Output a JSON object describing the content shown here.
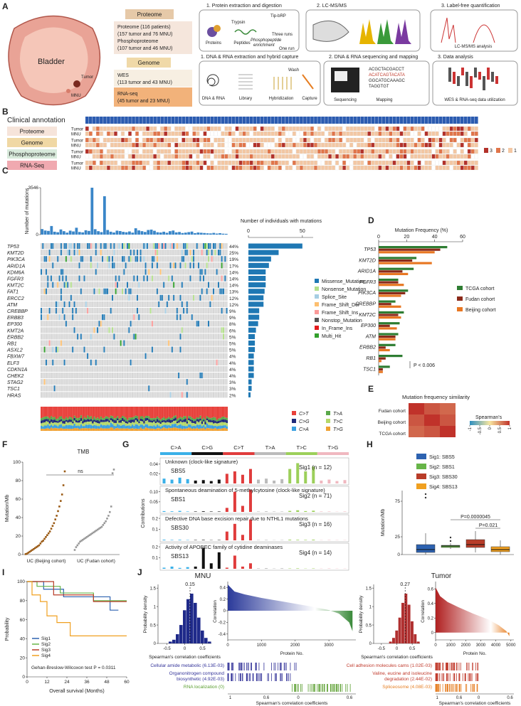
{
  "panel_a": {
    "label": "A",
    "organ": "Bladder",
    "tumor": "Tumor",
    "mnu": "MNU",
    "proteome": {
      "title": "Proteome",
      "lines": [
        "Proteome (116 patients)",
        "(157 tumor and 76 MNU)",
        "Phosphoproteome",
        "(107 tumor and 46 MNU)"
      ]
    },
    "genome": {
      "title": "Genome",
      "wes": [
        "WES",
        "(113 tumor and 43 MNU)"
      ],
      "rnaseq": [
        "RNA-seq",
        "(45 tumor and 23 MNU)"
      ]
    },
    "proteome_flow": {
      "steps": [
        "1. Protein extraction and digestion",
        "2. LC-MS/MS",
        "3. Label-free quantification"
      ],
      "trypsin": "Trypsin",
      "tip": "Tip-bRP",
      "three_runs": "Three runs",
      "proteins": "Proteins",
      "peptides": "Peptides",
      "enrichment": [
        "Phosphopeptide",
        "enrichment"
      ],
      "one_run": "One run",
      "analysis": "LC-MS/MS analysis"
    },
    "genome_flow": {
      "steps": [
        "1. DNA & RNA extraction and hybrid capture",
        "2. DNA & RNA sequencing and mapping",
        "3. Data analysis"
      ],
      "wash": "Wash",
      "dna": "DNA & RNA",
      "library": "Library",
      "hybridization": "Hybridization",
      "capture": "Capture",
      "sequencing": "Sequencing",
      "mapping": "Mapping",
      "reads": [
        "ACGCTACGACCT",
        "ACATCAGTACATA",
        "GGCATGCAAAGC",
        "TAGGTGT"
      ],
      "utilization": "WES & RNA-seq data utilization"
    }
  },
  "panel_b": {
    "label": "B",
    "title": "Clinical annotation",
    "rows": [
      "Proteome",
      "Genome",
      "Phosphoproteome",
      "RNA-Seq"
    ],
    "row_colors": [
      "#f6e4da",
      "#f0d8a4",
      "#d8eadb",
      "#f0a9b0"
    ],
    "subrows": [
      "Tumor",
      "MNU"
    ],
    "legend": [
      {
        "value": 3,
        "color": "#b2312a"
      },
      {
        "value": 2,
        "color": "#e0754a"
      },
      {
        "value": 1,
        "color": "#f3c7a3"
      }
    ]
  },
  "panel_c": {
    "label": "C",
    "count_axis": {
      "label": "Number of mutations",
      "ylim": [
        0,
        3546
      ],
      "yticks": [
        0,
        3546
      ]
    },
    "mutation_counts": [
      420,
      310,
      280,
      650,
      220,
      180,
      390,
      260,
      150,
      300,
      240,
      520,
      200,
      170,
      330,
      280,
      3546,
      410,
      260,
      190,
      2900,
      350,
      220,
      160,
      300,
      270,
      210,
      180,
      240,
      150,
      480,
      320,
      260,
      200,
      350,
      380,
      290,
      180,
      160,
      220,
      140,
      260,
      310,
      170,
      200,
      120,
      150,
      190,
      230,
      110,
      160,
      140,
      120,
      100,
      90,
      130,
      80,
      110,
      70,
      60
    ],
    "genes": [
      "TP53",
      "KMT2D",
      "PIK3CA",
      "ARID1A",
      "KDM6A",
      "FGFR3",
      "KMT2C",
      "FAT1",
      "ERCC2",
      "ATM",
      "CREBBP",
      "ERBB3",
      "EP300",
      "KMT2A",
      "ERBB2",
      "RB1",
      "ASXL2",
      "FBXW7",
      "ELF3",
      "CDKN1A",
      "CHEK2",
      "STAG2",
      "TSC1",
      "HRAS"
    ],
    "freq": [
      44,
      25,
      19,
      17,
      14,
      14,
      14,
      13,
      12,
      12,
      9,
      9,
      8,
      6,
      5,
      5,
      5,
      4,
      4,
      4,
      4,
      3,
      3,
      2
    ],
    "freq_labels": [
      "44%",
      "25%",
      "19%",
      "17%",
      "14%",
      "14%",
      "14%",
      "13%",
      "12%",
      "12%",
      "9%",
      "9%",
      "8%",
      "6%",
      "5%",
      "5%",
      "5%",
      "4%",
      "4%",
      "4%",
      "4%",
      "3%",
      "3%",
      "2%"
    ],
    "individuals": {
      "title": "Number of individuals with mutations",
      "xlim": [
        0,
        60
      ],
      "xticks": [
        0,
        50
      ],
      "values": [
        50,
        28,
        21,
        19,
        16,
        16,
        16,
        15,
        14,
        14,
        10,
        10,
        9,
        7,
        6,
        6,
        6,
        5,
        5,
        5,
        5,
        3,
        3,
        2
      ]
    },
    "mutation_types": [
      {
        "name": "Missense_Mutation",
        "color": "#1f78b4"
      },
      {
        "name": "Nonsense_Mutation",
        "color": "#b2df8a"
      },
      {
        "name": "Splice_Site",
        "color": "#a6cee3"
      },
      {
        "name": "Frame_Shift_Del",
        "color": "#fdbf6f"
      },
      {
        "name": "Frame_Shift_Ins",
        "color": "#fb9a99"
      },
      {
        "name": "Nonstop_Mutation",
        "color": "#555555"
      },
      {
        "name": "In_Frame_Ins",
        "color": "#e31a1c"
      },
      {
        "name": "Multi_Hit",
        "color": "#33a02c"
      }
    ],
    "substitutions": [
      {
        "name": "C>T",
        "color": "#e8403a"
      },
      {
        "name": "T>A",
        "color": "#5aa84a"
      },
      {
        "name": "C>G",
        "color": "#1e2a7a"
      },
      {
        "name": "T>C",
        "color": "#b5d86a"
      },
      {
        "name": "C>A",
        "color": "#3aa0e0"
      },
      {
        "name": "T>G",
        "color": "#f0a030"
      }
    ]
  },
  "panel_d": {
    "label": "D",
    "title": "Mutation Frequency (%)",
    "xlim": [
      0,
      60
    ],
    "xticks": [
      0,
      20,
      40,
      60
    ],
    "genes": [
      "TP53",
      "KMT2D",
      "ARID1A",
      "FGFR3",
      "PIK3CA",
      "CREBBP",
      "KMT2C",
      "EP300",
      "ATM",
      "ERBB2",
      "RB1",
      "TSC1"
    ],
    "series": [
      {
        "name": "TCGA cohort",
        "color": "#2e7d32",
        "values": [
          49,
          27,
          25,
          14,
          21,
          12,
          18,
          15,
          14,
          12,
          17,
          8
        ]
      },
      {
        "name": "Fudan cohort",
        "color": "#8b2a1a",
        "values": [
          44,
          24,
          17,
          14,
          19,
          9,
          14,
          8,
          12,
          5,
          5,
          3
        ]
      },
      {
        "name": "Beijing cohort",
        "color": "#e87722",
        "values": [
          40,
          38,
          21,
          18,
          16,
          16,
          16,
          13,
          12,
          8,
          2,
          3
        ]
      }
    ],
    "annotation": "P < 0.006"
  },
  "panel_e": {
    "label": "E",
    "title": "Mutation frequency similarity",
    "rows": [
      "Fudan cohort",
      "Beijing cohort",
      "TCGA cohort"
    ],
    "matrix": [
      [
        1,
        0.8,
        0.7
      ],
      [
        0.8,
        1,
        0.8
      ],
      [
        0.7,
        0.8,
        1
      ]
    ],
    "legend_title": "Spearman's",
    "legend_ticks": [
      -1,
      -0.5,
      0,
      0.5,
      1
    ]
  },
  "panel_f": {
    "label": "F",
    "title": "TMB",
    "ylabel": "Mutation/Mb",
    "ylim": [
      0,
      100
    ],
    "yticks": [
      0,
      20,
      40,
      60,
      80,
      100
    ],
    "categories": [
      "UC (Beijing cohort)",
      "UC (Fudan cohort)"
    ],
    "annotation": "ns",
    "series": [
      {
        "color": "#9a5a14",
        "values": [
          0.5,
          1,
          2,
          3,
          4,
          5,
          6,
          7,
          8,
          9,
          10,
          12,
          14,
          15,
          17,
          19,
          21,
          23,
          25,
          28,
          31,
          34,
          38,
          42,
          47,
          52,
          58,
          65,
          75,
          90
        ]
      },
      {
        "color": "#999999",
        "values": [
          5,
          8,
          10,
          12,
          14,
          15,
          16,
          17,
          18,
          19,
          20,
          21,
          22,
          23,
          24,
          25,
          26,
          27,
          28,
          29,
          30,
          32,
          34,
          36,
          39,
          42,
          46,
          52,
          88,
          92
        ]
      }
    ]
  },
  "panel_g": {
    "label": "G",
    "ylabel": "Contributions",
    "classes": [
      {
        "name": "C>A",
        "color": "#3ab0e8"
      },
      {
        "name": "C>G",
        "color": "#111111"
      },
      {
        "name": "C>T",
        "color": "#e03c3c"
      },
      {
        "name": "T>A",
        "color": "#bbbbbb"
      },
      {
        "name": "T>C",
        "color": "#9ccf5a"
      },
      {
        "name": "T>G",
        "color": "#f0b8c0"
      }
    ],
    "signatures": [
      {
        "description": "Unknown (clock-like signature)",
        "sbs": "SBS5",
        "name": "Sig1 (n = 12)",
        "ylim": [
          0,
          0.05
        ],
        "yticks": [
          0.02,
          0.04
        ],
        "values": [
          0.01,
          0.008,
          0.012,
          0.009,
          0.006,
          0.007,
          0.005,
          0.008,
          0.02,
          0.025,
          0.018,
          0.03,
          0.008,
          0.01,
          0.006,
          0.009,
          0.03,
          0.042,
          0.025,
          0.035,
          0.006,
          0.008,
          0.005,
          0.007
        ]
      },
      {
        "description": "Spontaneous deamination of 5-methylcytosine (clock-like signature)",
        "sbs": "SBS1",
        "name": "Sig2 (n = 71)",
        "ylim": [
          0,
          0.12
        ],
        "yticks": [
          0.05,
          {
            "value": 0.1,
            "label": "0.10"
          }
        ],
        "values": [
          0.004,
          0.003,
          0.005,
          0.002,
          0.002,
          0.003,
          0.002,
          0.002,
          0.02,
          0.1,
          0.03,
          0.11,
          0.002,
          0.003,
          0.002,
          0.002,
          0.005,
          0.008,
          0.004,
          0.006,
          0.002,
          0.002,
          0.001,
          0.002
        ]
      },
      {
        "description": "Defective DNA base excision repair due to NTHL1 mutations",
        "sbs": "SBS30",
        "name": "Sig3 (n = 16)",
        "ylim": [
          0,
          0.22
        ],
        "yticks": [
          0.1,
          0.2
        ],
        "values": [
          0.006,
          0.004,
          0.005,
          0.003,
          0.003,
          0.004,
          0.002,
          0.003,
          0.08,
          0.15,
          0.05,
          0.19,
          0.003,
          0.004,
          0.002,
          0.003,
          0.006,
          0.005,
          0.004,
          0.006,
          0.002,
          0.003,
          0.002,
          0.002
        ]
      },
      {
        "description": "Activity of APOBEC family of cytidine deaminases",
        "sbs": "SBS13",
        "name": "Sig4 (n = 14)",
        "ylim": [
          0,
          0.22
        ],
        "yticks": [
          0.1,
          0.2
        ],
        "values": [
          0.01,
          0.02,
          0.008,
          0.015,
          0.02,
          0.19,
          0.05,
          0.15,
          0.01,
          0.12,
          0.02,
          0.05,
          0.004,
          0.006,
          0.003,
          0.005,
          0.003,
          0.004,
          0.002,
          0.003,
          0.002,
          0.003,
          0.002,
          0.002
        ]
      }
    ]
  },
  "panel_h": {
    "label": "H",
    "ylabel": "Mutation/Mb",
    "ylim": [
      0,
      90
    ],
    "yticks": [
      0,
      25,
      75
    ],
    "series": [
      {
        "name": "Sig1: SBS5",
        "color": "#2d62b0",
        "low": 0,
        "q1": 3,
        "median": 7,
        "q3": 14,
        "high": 30,
        "outliers": [
          85,
          80
        ]
      },
      {
        "name": "Sig2: SBS1",
        "color": "#67b548",
        "low": 8,
        "q1": 10,
        "median": 12,
        "q3": 13,
        "high": 16,
        "outliers": [
          24,
          19
        ]
      },
      {
        "name": "Sig3: SBS30",
        "color": "#b83c28",
        "low": 3,
        "q1": 10,
        "median": 14,
        "q3": 21,
        "high": 33,
        "outliers": []
      },
      {
        "name": "Sig4: SBS13",
        "color": "#f0a020",
        "low": 0,
        "q1": 4,
        "median": 7,
        "q3": 11,
        "high": 20,
        "outliers": []
      }
    ],
    "annotations": [
      "P=0.0000045",
      "P=0.021"
    ]
  },
  "panel_i": {
    "label": "I",
    "ylabel": "Probability",
    "xlabel": "Overall survival (Months)",
    "xlim": [
      0,
      60
    ],
    "xticks": [
      0,
      12,
      24,
      36,
      48,
      60
    ],
    "ylim": [
      0,
      100
    ],
    "yticks": [
      0,
      20,
      40,
      60,
      80,
      100
    ],
    "annotation": "Gehan-Breslow-Wilcoxon test P = 0.0311",
    "series": [
      {
        "name": "Sig1",
        "color": "#2d62b0",
        "x": [
          0,
          10,
          10,
          22,
          22,
          50,
          50,
          55
        ],
        "y": [
          100,
          100,
          92,
          92,
          84,
          84,
          70,
          70
        ]
      },
      {
        "name": "Sig2",
        "color": "#67b548",
        "x": [
          0,
          6,
          6,
          20,
          20,
          40,
          40,
          60
        ],
        "y": [
          100,
          100,
          95,
          95,
          88,
          88,
          80,
          80
        ]
      },
      {
        "name": "Sig3",
        "color": "#b83c28",
        "x": [
          0,
          16,
          16,
          40,
          40,
          60
        ],
        "y": [
          100,
          100,
          86,
          86,
          79,
          79
        ]
      },
      {
        "name": "Sig4",
        "color": "#f0a020",
        "x": [
          0,
          3,
          3,
          8,
          8,
          12,
          12,
          18,
          18,
          26,
          26,
          60
        ],
        "y": [
          100,
          100,
          86,
          86,
          79,
          79,
          64,
          64,
          57,
          57,
          43,
          43
        ]
      }
    ]
  },
  "panel_j": {
    "label": "J",
    "hist_ylabel": "Probability density",
    "hist_xlabel": "Spearman's correlation coefficients",
    "corr_ylabel": "Correlation",
    "corr_xlabel": "Protein No.",
    "barcode_xlabel": "Spearman's correlation coefficients",
    "groups": [
      {
        "title": "MNU",
        "peak": 0.15,
        "color": "#1f2a8a",
        "hist_xlim": [
          -0.75,
          0.75
        ],
        "hist_xticks": [
          -0.5,
          0,
          0.5
        ],
        "hist_ylim": [
          0,
          1.6
        ],
        "hist_yticks": [
          0,
          0.5,
          1,
          1.5
        ],
        "bins": [
          -0.45,
          -0.35,
          -0.25,
          -0.15,
          -0.05,
          0.05,
          0.15,
          0.25,
          0.35,
          0.45,
          0.55,
          0.65,
          0.75
        ],
        "counts": [
          0.05,
          0.1,
          0.25,
          0.5,
          0.9,
          1.2,
          1.35,
          1.1,
          0.7,
          0.35,
          0.15,
          0.05
        ],
        "corr_xlim": [
          0,
          3800
        ],
        "corr_xticks": [
          0,
          1000,
          2000,
          3000
        ],
        "corr_ylim": [
          -0.5,
          0.5
        ],
        "corr_yticks": [
          -0.4,
          -0.2,
          0,
          0.2,
          0.4
        ],
        "corr_x": [
          0,
          200,
          500,
          1000,
          1500,
          2000,
          2500,
          3000,
          3300,
          3600,
          3700
        ],
        "corr_y": [
          0.45,
          0.33,
          0.28,
          0.22,
          0.17,
          0.12,
          0.07,
          0.01,
          -0.05,
          -0.2,
          -0.35
        ],
        "terms": [
          [
            "Cellular amide metabolic (6.13E-03)"
          ],
          [
            "Organonitrogen compound",
            "biosynthetic (4.92E-03)"
          ],
          [
            "RNA localization (0)"
          ]
        ],
        "term_colors": [
          "#333399",
          "#333399",
          "#5a9e2f"
        ],
        "barcode_ticks": [
          1,
          0.6,
          0,
          0.6
        ]
      },
      {
        "title": "Tumor",
        "peak": 0.27,
        "color": "#b03030",
        "hist_xlim": [
          -0.75,
          0.75
        ],
        "hist_xticks": [
          -0.5,
          0,
          0.5
        ],
        "hist_ylim": [
          0,
          1.6
        ],
        "hist_yticks": [
          0,
          0.5,
          1,
          1.5
        ],
        "bins": [
          -0.25,
          -0.15,
          -0.05,
          0.05,
          0.15,
          0.25,
          0.35,
          0.45,
          0.55,
          0.65,
          0.75
        ],
        "counts": [
          0.05,
          0.15,
          0.35,
          0.7,
          1.1,
          1.35,
          1.05,
          0.6,
          0.25,
          0.05
        ],
        "corr_xlim": [
          0,
          5200
        ],
        "corr_xticks": [
          0,
          1000,
          2000,
          3000,
          4000,
          5000
        ],
        "corr_ylim": [
          -0.1,
          0.7
        ],
        "corr_yticks": [
          0,
          0.2,
          0.4,
          0.6
        ],
        "corr_x": [
          0,
          300,
          800,
          1500,
          2500,
          3500,
          4200,
          4700,
          4900
        ],
        "corr_y": [
          0.62,
          0.5,
          0.42,
          0.35,
          0.26,
          0.18,
          0.1,
          0.02,
          -0.05
        ],
        "terms": [
          [
            "Cell adhesion molecules cams (1.02E-03)"
          ],
          [
            "Valine, eucine and isoleucine",
            "degradation (2.44E-02)"
          ],
          [
            "Spliceosome (4.08E-03)"
          ]
        ],
        "term_colors": [
          "#c0392b",
          "#c0392b",
          "#e67e22"
        ],
        "barcode_ticks": [
          1,
          0.6,
          0,
          0.6
        ]
      }
    ]
  }
}
